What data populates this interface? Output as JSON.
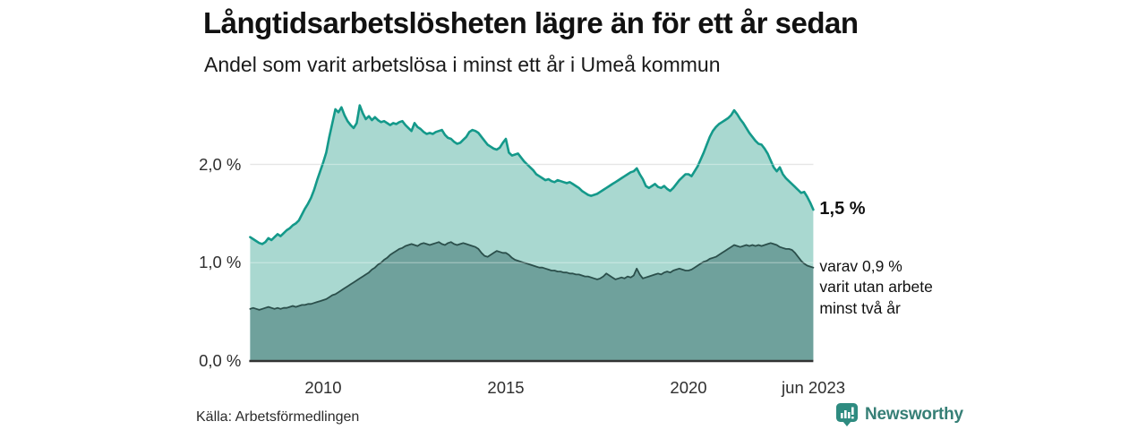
{
  "header": {
    "title": "Långtidsarbetslösheten lägre än för ett år sedan",
    "subtitle": "Andel som varit arbetslösa i minst ett år i Umeå kommun"
  },
  "chart_data": {
    "type": "area",
    "title": "Långtidsarbetslösheten lägre än för ett år sedan",
    "subtitle": "Andel som varit arbetslösa i minst ett år i Umeå kommun",
    "x_unit": "year, monthly values",
    "x_start": 2008.0,
    "x_step": 0.0833333,
    "x_end_label": "jun 2023",
    "ylim": [
      0,
      2.72
    ],
    "grid": "horizontal",
    "legend": "none",
    "yticks": [
      {
        "label": "0,0 %",
        "value": 0
      },
      {
        "label": "1,0 %",
        "value": 1
      },
      {
        "label": "2,0 %",
        "value": 2
      }
    ],
    "xticks": [
      {
        "label": "2010",
        "value": 2010
      },
      {
        "label": "2015",
        "value": 2015
      },
      {
        "label": "2020",
        "value": 2020
      },
      {
        "label": "jun 2023",
        "value": 2023.42
      }
    ],
    "series": [
      {
        "name": "Arbetslösa minst ett år",
        "fill": "#a9d8d0",
        "line": "#14998a",
        "line_width": 2.6,
        "values": [
          1.26,
          1.24,
          1.22,
          1.2,
          1.19,
          1.21,
          1.25,
          1.23,
          1.26,
          1.29,
          1.27,
          1.3,
          1.33,
          1.35,
          1.38,
          1.4,
          1.43,
          1.49,
          1.55,
          1.6,
          1.66,
          1.74,
          1.84,
          1.93,
          2.02,
          2.12,
          2.28,
          2.42,
          2.56,
          2.53,
          2.58,
          2.5,
          2.44,
          2.4,
          2.37,
          2.42,
          2.6,
          2.52,
          2.46,
          2.49,
          2.45,
          2.48,
          2.45,
          2.43,
          2.44,
          2.42,
          2.4,
          2.42,
          2.41,
          2.43,
          2.44,
          2.4,
          2.37,
          2.34,
          2.42,
          2.38,
          2.36,
          2.33,
          2.31,
          2.32,
          2.31,
          2.33,
          2.34,
          2.35,
          2.3,
          2.27,
          2.26,
          2.23,
          2.21,
          2.22,
          2.25,
          2.28,
          2.33,
          2.35,
          2.34,
          2.32,
          2.28,
          2.24,
          2.2,
          2.18,
          2.16,
          2.15,
          2.17,
          2.22,
          2.26,
          2.12,
          2.09,
          2.1,
          2.11,
          2.07,
          2.03,
          2.0,
          1.97,
          1.94,
          1.9,
          1.88,
          1.86,
          1.84,
          1.85,
          1.83,
          1.82,
          1.84,
          1.83,
          1.82,
          1.81,
          1.82,
          1.8,
          1.78,
          1.76,
          1.73,
          1.71,
          1.69,
          1.68,
          1.69,
          1.7,
          1.72,
          1.74,
          1.76,
          1.78,
          1.8,
          1.82,
          1.84,
          1.86,
          1.88,
          1.9,
          1.92,
          1.93,
          1.96,
          1.9,
          1.85,
          1.78,
          1.76,
          1.78,
          1.8,
          1.77,
          1.76,
          1.78,
          1.75,
          1.73,
          1.76,
          1.8,
          1.84,
          1.87,
          1.9,
          1.9,
          1.88,
          1.93,
          1.98,
          2.05,
          2.12,
          2.2,
          2.28,
          2.34,
          2.38,
          2.41,
          2.43,
          2.45,
          2.47,
          2.5,
          2.55,
          2.51,
          2.46,
          2.42,
          2.37,
          2.32,
          2.28,
          2.24,
          2.21,
          2.2,
          2.16,
          2.11,
          2.04,
          1.97,
          1.93,
          1.97,
          1.9,
          1.86,
          1.83,
          1.8,
          1.77,
          1.74,
          1.71,
          1.72,
          1.67,
          1.61,
          1.54
        ]
      },
      {
        "name": "Varav utan arbete minst två år",
        "fill": "#6fa19c",
        "line": "#2b4f4b",
        "line_width": 1.8,
        "values": [
          0.53,
          0.54,
          0.53,
          0.52,
          0.53,
          0.54,
          0.55,
          0.54,
          0.53,
          0.54,
          0.53,
          0.54,
          0.54,
          0.55,
          0.56,
          0.55,
          0.56,
          0.57,
          0.57,
          0.58,
          0.58,
          0.59,
          0.6,
          0.61,
          0.62,
          0.63,
          0.65,
          0.67,
          0.68,
          0.7,
          0.72,
          0.74,
          0.76,
          0.78,
          0.8,
          0.82,
          0.84,
          0.86,
          0.88,
          0.9,
          0.93,
          0.95,
          0.98,
          1.0,
          1.03,
          1.05,
          1.08,
          1.1,
          1.12,
          1.14,
          1.15,
          1.17,
          1.18,
          1.19,
          1.18,
          1.17,
          1.19,
          1.2,
          1.19,
          1.18,
          1.19,
          1.2,
          1.21,
          1.19,
          1.18,
          1.2,
          1.21,
          1.19,
          1.18,
          1.19,
          1.2,
          1.19,
          1.18,
          1.17,
          1.16,
          1.14,
          1.1,
          1.07,
          1.06,
          1.08,
          1.1,
          1.12,
          1.11,
          1.1,
          1.1,
          1.08,
          1.05,
          1.03,
          1.02,
          1.01,
          1.0,
          0.99,
          0.98,
          0.97,
          0.96,
          0.95,
          0.95,
          0.94,
          0.93,
          0.92,
          0.92,
          0.91,
          0.91,
          0.9,
          0.9,
          0.89,
          0.89,
          0.88,
          0.88,
          0.87,
          0.86,
          0.86,
          0.85,
          0.84,
          0.83,
          0.84,
          0.86,
          0.89,
          0.87,
          0.85,
          0.83,
          0.84,
          0.85,
          0.84,
          0.86,
          0.85,
          0.87,
          0.94,
          0.88,
          0.84,
          0.85,
          0.86,
          0.87,
          0.88,
          0.89,
          0.88,
          0.9,
          0.91,
          0.9,
          0.92,
          0.93,
          0.94,
          0.93,
          0.92,
          0.92,
          0.93,
          0.95,
          0.97,
          0.99,
          1.01,
          1.02,
          1.04,
          1.05,
          1.06,
          1.08,
          1.1,
          1.12,
          1.14,
          1.16,
          1.18,
          1.17,
          1.16,
          1.17,
          1.18,
          1.17,
          1.18,
          1.17,
          1.18,
          1.17,
          1.18,
          1.19,
          1.2,
          1.19,
          1.18,
          1.16,
          1.15,
          1.14,
          1.14,
          1.13,
          1.1,
          1.06,
          1.02,
          0.99,
          0.97,
          0.96,
          0.95
        ]
      }
    ],
    "annotations": [
      {
        "text": "1,5 %",
        "attach": "end of series 0"
      },
      {
        "text": "varav 0,9 % varit utan arbete minst två år",
        "attach": "end of series 1"
      }
    ]
  },
  "annotations": {
    "end_value_label": "1,5 %",
    "sub_label_lines": [
      "varav 0,9 %",
      "varit utan arbete",
      "minst två år"
    ]
  },
  "footer": {
    "source": "Källa: Arbetsförmedlingen",
    "brand": "Newsworthy"
  },
  "colors": {
    "accent_teal": "#14998a",
    "area_light": "#a9d8d0",
    "area_dark": "#6fa19c",
    "line_dark": "#2b4f4b",
    "brand_teal": "#367f76",
    "grid": "#d9d9d9",
    "grid_overlay": "rgba(255,255,255,0.35)",
    "axis": "#333333",
    "text": "#111111"
  }
}
